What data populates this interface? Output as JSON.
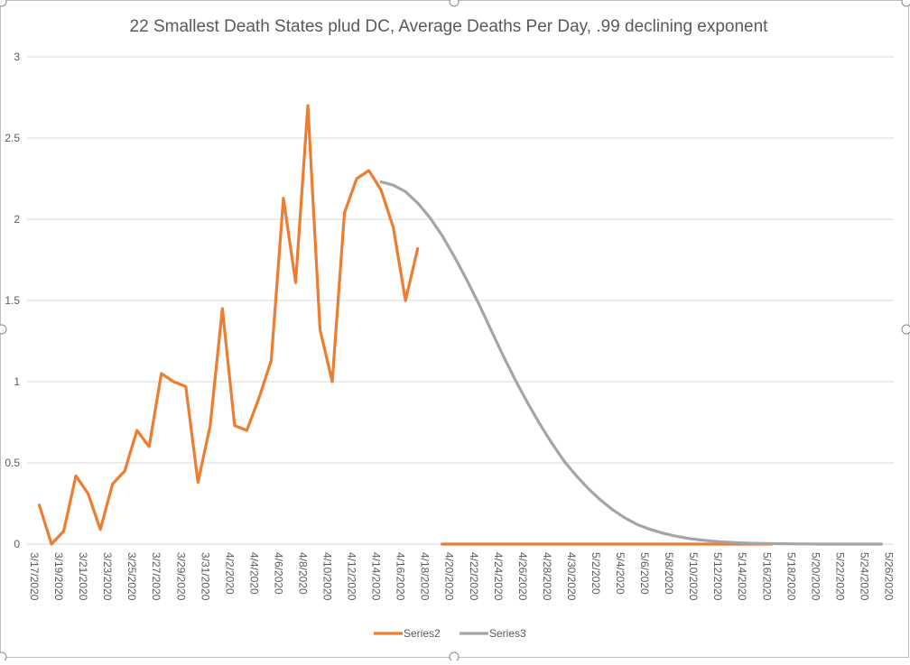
{
  "chart_data": {
    "type": "line",
    "title": "22 Smallest Death States plud DC, Average Deaths Per Day, .99 declining exponent",
    "xlabel": "",
    "ylabel": "",
    "ylim": [
      0,
      3
    ],
    "yticks": [
      "0",
      "0.5",
      "1",
      "1.5",
      "2",
      "2.5",
      "3"
    ],
    "x_tick_labels": [
      "3/17/2020",
      "3/19/2020",
      "3/21/2020",
      "3/23/2020",
      "3/25/2020",
      "3/27/2020",
      "3/29/2020",
      "3/31/2020",
      "4/2/2020",
      "4/4/2020",
      "4/6/2020",
      "4/8/2020",
      "4/10/2020",
      "4/12/2020",
      "4/14/2020",
      "4/16/2020",
      "4/18/2020",
      "4/20/2020",
      "4/22/2020",
      "4/24/2020",
      "4/26/2020",
      "4/28/2020",
      "4/30/2020",
      "5/2/2020",
      "5/4/2020",
      "5/6/2020",
      "5/8/2020",
      "5/10/2020",
      "5/12/2020",
      "5/14/2020",
      "5/16/2020",
      "5/18/2020",
      "5/20/2020",
      "5/22/2020",
      "5/24/2020",
      "5/26/2020"
    ],
    "x_start": "3/17/2020",
    "x_end": "5/27/2020",
    "grid": true,
    "legend_position": "bottom",
    "series": [
      {
        "name": "Series2",
        "color": "#ED7D31",
        "points": [
          [
            "3/18/2020",
            0.24
          ],
          [
            "3/19/2020",
            0.0
          ],
          [
            "3/20/2020",
            0.08
          ],
          [
            "3/21/2020",
            0.42
          ],
          [
            "3/22/2020",
            0.31
          ],
          [
            "3/23/2020",
            0.09
          ],
          [
            "3/24/2020",
            0.37
          ],
          [
            "3/25/2020",
            0.45
          ],
          [
            "3/26/2020",
            0.7
          ],
          [
            "3/27/2020",
            0.6
          ],
          [
            "3/28/2020",
            1.05
          ],
          [
            "3/29/2020",
            1.0
          ],
          [
            "3/30/2020",
            0.97
          ],
          [
            "3/31/2020",
            0.38
          ],
          [
            "4/1/2020",
            0.73
          ],
          [
            "4/2/2020",
            1.45
          ],
          [
            "4/3/2020",
            0.73
          ],
          [
            "4/4/2020",
            0.7
          ],
          [
            "4/5/2020",
            0.9
          ],
          [
            "4/6/2020",
            1.13
          ],
          [
            "4/7/2020",
            2.13
          ],
          [
            "4/8/2020",
            1.61
          ],
          [
            "4/9/2020",
            2.7
          ],
          [
            "4/10/2020",
            1.32
          ],
          [
            "4/11/2020",
            1.0
          ],
          [
            "4/12/2020",
            2.04
          ],
          [
            "4/13/2020",
            2.25
          ],
          [
            "4/14/2020",
            2.3
          ],
          [
            "4/15/2020",
            2.18
          ],
          [
            "4/16/2020",
            1.95
          ],
          [
            "4/17/2020",
            1.5
          ],
          [
            "4/18/2020",
            1.82
          ],
          [
            "4/20/2020",
            0
          ],
          [
            "4/21/2020",
            0
          ],
          [
            "4/22/2020",
            0
          ],
          [
            "4/23/2020",
            0
          ],
          [
            "4/24/2020",
            0
          ],
          [
            "4/25/2020",
            0
          ],
          [
            "4/26/2020",
            0
          ],
          [
            "4/27/2020",
            0
          ],
          [
            "4/28/2020",
            0
          ],
          [
            "4/29/2020",
            0
          ],
          [
            "4/30/2020",
            0
          ],
          [
            "5/1/2020",
            0
          ],
          [
            "5/2/2020",
            0
          ],
          [
            "5/3/2020",
            0
          ],
          [
            "5/4/2020",
            0
          ],
          [
            "5/5/2020",
            0
          ],
          [
            "5/6/2020",
            0
          ],
          [
            "5/7/2020",
            0
          ],
          [
            "5/8/2020",
            0
          ],
          [
            "5/9/2020",
            0
          ],
          [
            "5/10/2020",
            0
          ],
          [
            "5/11/2020",
            0
          ],
          [
            "5/12/2020",
            0
          ],
          [
            "5/13/2020",
            0
          ],
          [
            "5/14/2020",
            0
          ],
          [
            "5/15/2020",
            0
          ],
          [
            "5/16/2020",
            0
          ],
          [
            "5/17/2020",
            0
          ]
        ]
      },
      {
        "name": "Series3",
        "color": "#A5A5A5",
        "points": [
          [
            "4/15/2020",
            2.23
          ],
          [
            "4/16/2020",
            2.21
          ],
          [
            "4/17/2020",
            2.17
          ],
          [
            "4/18/2020",
            2.1
          ],
          [
            "4/19/2020",
            2.01
          ],
          [
            "4/20/2020",
            1.9
          ],
          [
            "4/21/2020",
            1.77
          ],
          [
            "4/22/2020",
            1.63
          ],
          [
            "4/23/2020",
            1.48
          ],
          [
            "4/24/2020",
            1.32
          ],
          [
            "4/25/2020",
            1.16
          ],
          [
            "4/26/2020",
            1.01
          ],
          [
            "4/27/2020",
            0.87
          ],
          [
            "4/28/2020",
            0.74
          ],
          [
            "4/29/2020",
            0.62
          ],
          [
            "4/30/2020",
            0.51
          ],
          [
            "5/1/2020",
            0.42
          ],
          [
            "5/2/2020",
            0.34
          ],
          [
            "5/3/2020",
            0.27
          ],
          [
            "5/4/2020",
            0.21
          ],
          [
            "5/5/2020",
            0.16
          ],
          [
            "5/6/2020",
            0.12
          ],
          [
            "5/7/2020",
            0.092
          ],
          [
            "5/8/2020",
            0.069
          ],
          [
            "5/9/2020",
            0.051
          ],
          [
            "5/10/2020",
            0.037
          ],
          [
            "5/11/2020",
            0.027
          ],
          [
            "5/12/2020",
            0.019
          ],
          [
            "5/13/2020",
            0.013
          ],
          [
            "5/14/2020",
            0.009
          ],
          [
            "5/15/2020",
            0.006
          ],
          [
            "5/16/2020",
            0.004
          ],
          [
            "5/17/2020",
            0.003
          ],
          [
            "5/18/2020",
            0.002
          ],
          [
            "5/19/2020",
            0.001
          ],
          [
            "5/20/2020",
            0.001
          ],
          [
            "5/21/2020",
            0.0
          ],
          [
            "5/22/2020",
            0.0
          ],
          [
            "5/23/2020",
            0.0
          ],
          [
            "5/24/2020",
            0.0
          ],
          [
            "5/25/2020",
            0.0
          ],
          [
            "5/26/2020",
            0.0
          ]
        ]
      }
    ]
  }
}
